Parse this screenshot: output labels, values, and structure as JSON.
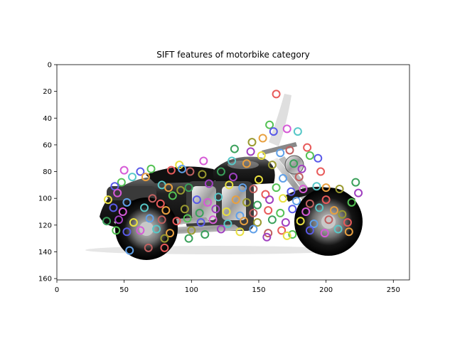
{
  "chart_data": {
    "type": "image",
    "title": "SIFT features of motorbike category",
    "image_description": "Photograph of a black cruiser motorcycle overlaid with many small colored SIFT keypoint circles",
    "xlabel": "",
    "ylabel": "",
    "xlim": [
      0,
      262
    ],
    "ylim": [
      161,
      0
    ],
    "grid": false,
    "x_ticks": [
      0,
      50,
      100,
      150,
      200,
      250
    ],
    "y_ticks": [
      0,
      20,
      40,
      60,
      80,
      100,
      120,
      140,
      160
    ],
    "keypoint_colors": [
      "#e85a5a",
      "#54c254",
      "#5a5ae8",
      "#d65ad6",
      "#58c8c8",
      "#e8a040",
      "#9a9a30",
      "#3aa05a",
      "#a040c0",
      "#e8e040",
      "#60a0e8",
      "#c06060"
    ],
    "keypoints": [
      {
        "x": 163,
        "y": 22
      },
      {
        "x": 158,
        "y": 45
      },
      {
        "x": 161,
        "y": 50
      },
      {
        "x": 171,
        "y": 48
      },
      {
        "x": 179,
        "y": 50
      },
      {
        "x": 153,
        "y": 55
      },
      {
        "x": 145,
        "y": 58
      },
      {
        "x": 132,
        "y": 63
      },
      {
        "x": 144,
        "y": 65
      },
      {
        "x": 152,
        "y": 68
      },
      {
        "x": 166,
        "y": 66
      },
      {
        "x": 173,
        "y": 64
      },
      {
        "x": 186,
        "y": 62
      },
      {
        "x": 188,
        "y": 68
      },
      {
        "x": 194,
        "y": 70
      },
      {
        "x": 109,
        "y": 72
      },
      {
        "x": 130,
        "y": 72
      },
      {
        "x": 141,
        "y": 74
      },
      {
        "x": 160,
        "y": 75
      },
      {
        "x": 176,
        "y": 74
      },
      {
        "x": 182,
        "y": 78
      },
      {
        "x": 91,
        "y": 75
      },
      {
        "x": 93,
        "y": 78
      },
      {
        "x": 99,
        "y": 80
      },
      {
        "x": 85,
        "y": 79
      },
      {
        "x": 70,
        "y": 78
      },
      {
        "x": 62,
        "y": 80
      },
      {
        "x": 50,
        "y": 79
      },
      {
        "x": 56,
        "y": 84
      },
      {
        "x": 66,
        "y": 84
      },
      {
        "x": 108,
        "y": 82
      },
      {
        "x": 122,
        "y": 80
      },
      {
        "x": 131,
        "y": 84
      },
      {
        "x": 150,
        "y": 86
      },
      {
        "x": 168,
        "y": 85
      },
      {
        "x": 180,
        "y": 84
      },
      {
        "x": 196,
        "y": 80
      },
      {
        "x": 48,
        "y": 88
      },
      {
        "x": 43,
        "y": 91
      },
      {
        "x": 45,
        "y": 96
      },
      {
        "x": 78,
        "y": 90
      },
      {
        "x": 83,
        "y": 92
      },
      {
        "x": 92,
        "y": 94
      },
      {
        "x": 98,
        "y": 92
      },
      {
        "x": 113,
        "y": 89
      },
      {
        "x": 128,
        "y": 90
      },
      {
        "x": 138,
        "y": 92
      },
      {
        "x": 146,
        "y": 93
      },
      {
        "x": 155,
        "y": 97
      },
      {
        "x": 163,
        "y": 92
      },
      {
        "x": 174,
        "y": 95
      },
      {
        "x": 183,
        "y": 93
      },
      {
        "x": 193,
        "y": 91
      },
      {
        "x": 200,
        "y": 92
      },
      {
        "x": 210,
        "y": 93
      },
      {
        "x": 222,
        "y": 88
      },
      {
        "x": 224,
        "y": 96
      },
      {
        "x": 38,
        "y": 101
      },
      {
        "x": 52,
        "y": 103
      },
      {
        "x": 71,
        "y": 100
      },
      {
        "x": 77,
        "y": 104
      },
      {
        "x": 86,
        "y": 98
      },
      {
        "x": 104,
        "y": 101
      },
      {
        "x": 112,
        "y": 103
      },
      {
        "x": 120,
        "y": 99
      },
      {
        "x": 133,
        "y": 101
      },
      {
        "x": 141,
        "y": 103
      },
      {
        "x": 149,
        "y": 105
      },
      {
        "x": 158,
        "y": 101
      },
      {
        "x": 168,
        "y": 100
      },
      {
        "x": 178,
        "y": 102
      },
      {
        "x": 188,
        "y": 104
      },
      {
        "x": 200,
        "y": 101
      },
      {
        "x": 219,
        "y": 103
      },
      {
        "x": 42,
        "y": 107
      },
      {
        "x": 49,
        "y": 110
      },
      {
        "x": 65,
        "y": 107
      },
      {
        "x": 81,
        "y": 109
      },
      {
        "x": 95,
        "y": 108
      },
      {
        "x": 106,
        "y": 111
      },
      {
        "x": 118,
        "y": 108
      },
      {
        "x": 126,
        "y": 110
      },
      {
        "x": 136,
        "y": 113
      },
      {
        "x": 146,
        "y": 111
      },
      {
        "x": 157,
        "y": 109
      },
      {
        "x": 166,
        "y": 111
      },
      {
        "x": 175,
        "y": 108
      },
      {
        "x": 185,
        "y": 110
      },
      {
        "x": 195,
        "y": 107
      },
      {
        "x": 206,
        "y": 109
      },
      {
        "x": 212,
        "y": 112
      },
      {
        "x": 37,
        "y": 117
      },
      {
        "x": 46,
        "y": 116
      },
      {
        "x": 57,
        "y": 118
      },
      {
        "x": 69,
        "y": 115
      },
      {
        "x": 78,
        "y": 116
      },
      {
        "x": 89,
        "y": 117
      },
      {
        "x": 97,
        "y": 115
      },
      {
        "x": 107,
        "y": 118
      },
      {
        "x": 116,
        "y": 116
      },
      {
        "x": 127,
        "y": 119
      },
      {
        "x": 139,
        "y": 117
      },
      {
        "x": 149,
        "y": 118
      },
      {
        "x": 160,
        "y": 116
      },
      {
        "x": 170,
        "y": 118
      },
      {
        "x": 181,
        "y": 117
      },
      {
        "x": 191,
        "y": 119
      },
      {
        "x": 202,
        "y": 116
      },
      {
        "x": 216,
        "y": 118
      },
      {
        "x": 44,
        "y": 124
      },
      {
        "x": 52,
        "y": 125
      },
      {
        "x": 62,
        "y": 124
      },
      {
        "x": 74,
        "y": 123
      },
      {
        "x": 84,
        "y": 126
      },
      {
        "x": 100,
        "y": 124
      },
      {
        "x": 110,
        "y": 127
      },
      {
        "x": 122,
        "y": 123
      },
      {
        "x": 136,
        "y": 125
      },
      {
        "x": 146,
        "y": 123
      },
      {
        "x": 157,
        "y": 126
      },
      {
        "x": 167,
        "y": 124
      },
      {
        "x": 175,
        "y": 127
      },
      {
        "x": 188,
        "y": 124
      },
      {
        "x": 199,
        "y": 126
      },
      {
        "x": 209,
        "y": 123
      },
      {
        "x": 217,
        "y": 125
      },
      {
        "x": 80,
        "y": 130
      },
      {
        "x": 98,
        "y": 130
      },
      {
        "x": 156,
        "y": 129
      },
      {
        "x": 171,
        "y": 128
      },
      {
        "x": 54,
        "y": 139
      },
      {
        "x": 68,
        "y": 137
      },
      {
        "x": 80,
        "y": 137
      }
    ]
  }
}
